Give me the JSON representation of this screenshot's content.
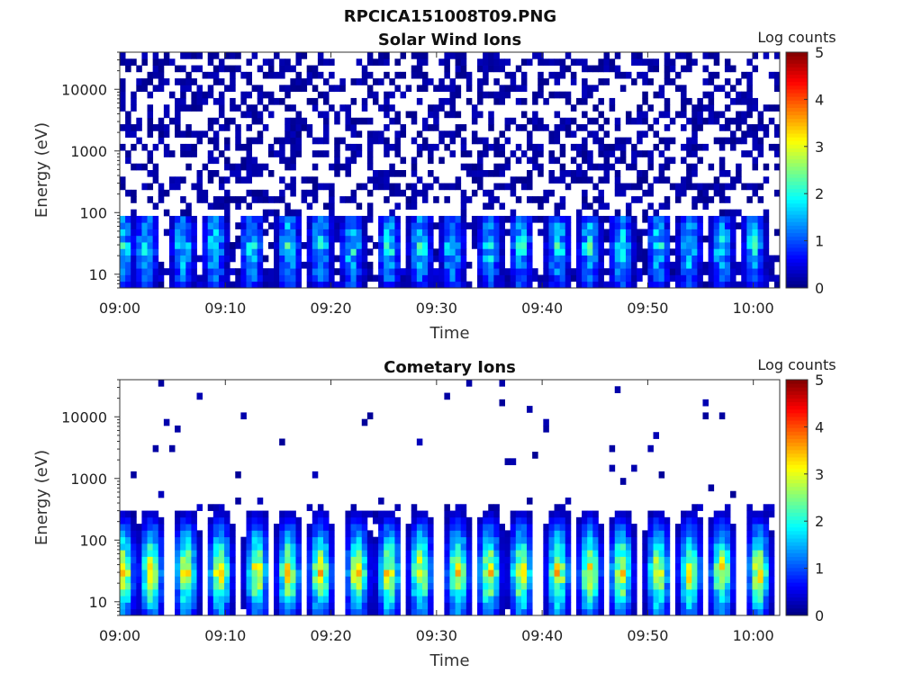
{
  "figure": {
    "title": "RPCICA151008T09.PNG"
  },
  "chart_data": [
    {
      "type": "heatmap",
      "title": "Solar Wind Ions",
      "xlabel": "Time",
      "ylabel": "Energy (eV)",
      "x_ticks": [
        "09:00",
        "09:10",
        "09:20",
        "09:30",
        "09:40",
        "09:50",
        "10:00"
      ],
      "x_range_minutes": [
        0,
        62.5
      ],
      "y_ticks": [
        "10",
        "100",
        "1000",
        "10000"
      ],
      "y_scale": "log",
      "y_range": [
        6,
        40000
      ],
      "colorbar": {
        "label": "Log counts",
        "ticks": [
          "0",
          "1",
          "2",
          "3",
          "4",
          "5"
        ],
        "range": [
          0,
          5
        ],
        "colormap": "jet"
      },
      "bursts_minute": [
        0.3,
        2.5,
        6.0,
        9.0,
        12.5,
        16.0,
        19.0,
        22.0,
        25.5,
        28.5,
        31.5,
        35.0,
        38.0,
        41.5,
        44.5,
        47.5,
        51.0,
        54.0,
        57.0,
        60.0
      ],
      "background_level_log": 0.4
    },
    {
      "type": "heatmap",
      "title": "Cometary Ions",
      "xlabel": "Time",
      "ylabel": "Energy (eV)",
      "x_ticks": [
        "09:00",
        "09:10",
        "09:20",
        "09:30",
        "09:40",
        "09:50",
        "10:00"
      ],
      "x_range_minutes": [
        0,
        62.5
      ],
      "y_ticks": [
        "10",
        "100",
        "1000",
        "10000"
      ],
      "y_scale": "log",
      "y_range": [
        6,
        40000
      ],
      "colorbar": {
        "label": "Log counts",
        "ticks": [
          "0",
          "1",
          "2",
          "3",
          "4",
          "5"
        ],
        "range": [
          0,
          5
        ],
        "colormap": "jet"
      },
      "bursts_minute": [
        0.3,
        3.0,
        6.3,
        9.5,
        13.0,
        16.0,
        19.0,
        22.5,
        25.5,
        28.5,
        32.0,
        35.0,
        38.0,
        41.5,
        44.5,
        47.5,
        51.0,
        54.0,
        57.0,
        60.5
      ],
      "peak_energy_eV": 30,
      "peak_level_log": 3.2
    }
  ]
}
